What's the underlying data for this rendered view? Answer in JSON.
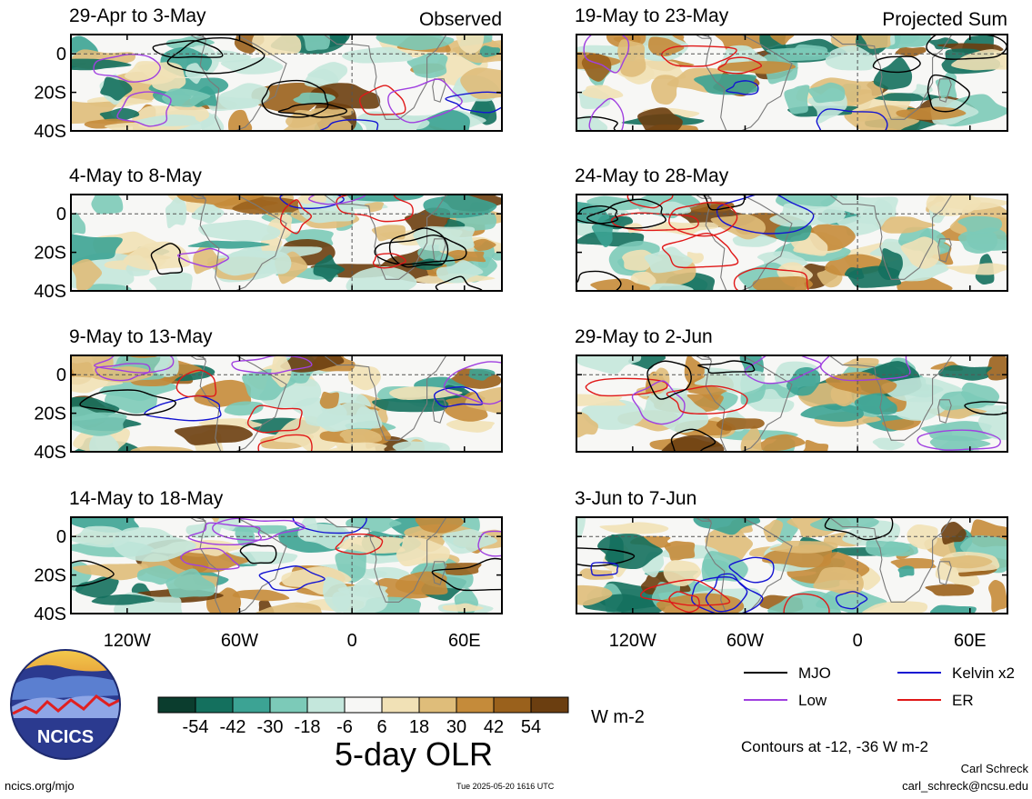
{
  "chart_data": {
    "type": "heatmap",
    "title": "5-day OLR",
    "units": "W m-2",
    "colorbar": {
      "ticks": [
        -54,
        -42,
        -30,
        -18,
        -6,
        6,
        18,
        30,
        42,
        54
      ],
      "colors": [
        "#0b3d2e",
        "#14705e",
        "#3ca394",
        "#7ccab8",
        "#c4e7dc",
        "#f7f7f5",
        "#f1e1b6",
        "#dfbd7a",
        "#c58b3a",
        "#9a611c",
        "#6b3e10"
      ]
    },
    "x_axis": {
      "ticks": [
        "120W",
        "60W",
        "0",
        "60E"
      ],
      "values": [
        -120,
        -60,
        0,
        60
      ],
      "range": [
        -150,
        80
      ]
    },
    "y_axis": {
      "ticks": [
        "0",
        "20S",
        "40S"
      ],
      "values": [
        0,
        -20,
        -40
      ],
      "range": [
        -40,
        10
      ]
    },
    "labels": {
      "observed": "Observed",
      "projected": "Projected Sum"
    },
    "panels": [
      {
        "period": "29-Apr to 3-May",
        "kind": "observed",
        "col": 0,
        "row": 0
      },
      {
        "period": "4-May to 8-May",
        "kind": "observed",
        "col": 0,
        "row": 1
      },
      {
        "period": "9-May to 13-May",
        "kind": "observed",
        "col": 0,
        "row": 2
      },
      {
        "period": "14-May to 18-May",
        "kind": "observed",
        "col": 0,
        "row": 3
      },
      {
        "period": "19-May to 23-May",
        "kind": "projected",
        "col": 1,
        "row": 0
      },
      {
        "period": "24-May to 28-May",
        "kind": "projected",
        "col": 1,
        "row": 1
      },
      {
        "period": "29-May to 2-Jun",
        "kind": "projected",
        "col": 1,
        "row": 2
      },
      {
        "period": "3-Jun to 7-Jun",
        "kind": "projected",
        "col": 1,
        "row": 3
      }
    ],
    "contour_legend": [
      {
        "name": "MJO",
        "color": "#000000"
      },
      {
        "name": "Kelvin x2",
        "color": "#1414d2"
      },
      {
        "name": "Low",
        "color": "#a040e0"
      },
      {
        "name": "ER",
        "color": "#e01818"
      }
    ],
    "contour_note": "Contours at -12, -36 W m-2"
  },
  "footer": {
    "logo_text": "NCICS",
    "url": "ncics.org/mjo",
    "timestamp": "Tue 2025-05-20 1616 UTC",
    "author": "Carl Schreck",
    "email": "carl_schreck@ncsu.edu"
  }
}
